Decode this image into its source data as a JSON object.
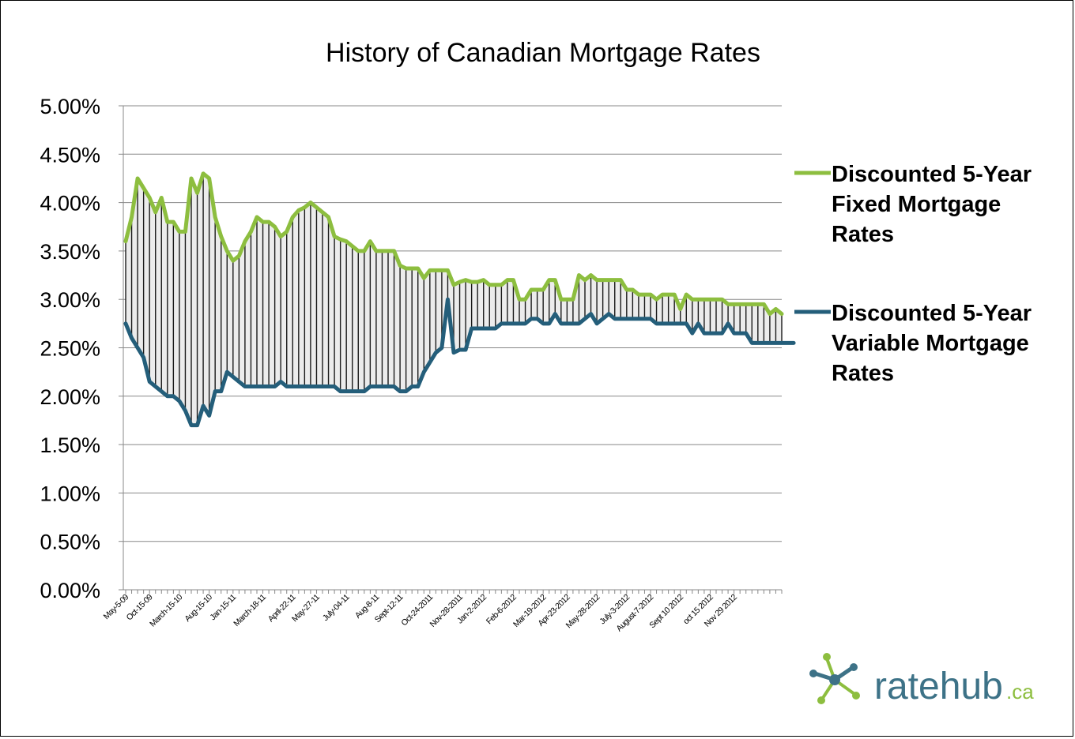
{
  "chart_data": {
    "type": "area",
    "title": "History of Canadian Mortgage Rates",
    "ylim": [
      0,
      5
    ],
    "yticks": [
      "0.00%",
      "0.50%",
      "1.00%",
      "1.50%",
      "2.00%",
      "2.50%",
      "3.00%",
      "3.50%",
      "4.00%",
      "4.50%",
      "5.00%"
    ],
    "ytick_values": [
      0,
      0.5,
      1,
      1.5,
      2,
      2.5,
      3,
      3.5,
      4,
      4.5,
      5
    ],
    "grid": true,
    "legend_position": "right",
    "fill_between_series": true,
    "x_tick_labels": [
      {
        "label": "May-5-09",
        "index": 0
      },
      {
        "label": "Oct-15-09",
        "index": 4
      },
      {
        "label": "March-15-10",
        "index": 9
      },
      {
        "label": "Aug-15-10",
        "index": 14
      },
      {
        "label": "Jan-15-11",
        "index": 18
      },
      {
        "label": "March-18-11",
        "index": 23
      },
      {
        "label": "April-22-11",
        "index": 28
      },
      {
        "label": "May-27-11",
        "index": 32
      },
      {
        "label": "July-04-11",
        "index": 37
      },
      {
        "label": "Aug-8-11",
        "index": 42
      },
      {
        "label": "Sept-12-11",
        "index": 46
      },
      {
        "label": "Oct-24-2011",
        "index": 51
      },
      {
        "label": "Nov-28-2011",
        "index": 56
      },
      {
        "label": "Jan-2-2012",
        "index": 60
      },
      {
        "label": "Feb-6-2012",
        "index": 65
      },
      {
        "label": "Mar-19-2012",
        "index": 70
      },
      {
        "label": "Apr-23-2012",
        "index": 74
      },
      {
        "label": "May-28-2012",
        "index": 79
      },
      {
        "label": "July-3-2012",
        "index": 84
      },
      {
        "label": "August-7-2012",
        "index": 88
      },
      {
        "label": "Sept 10 2012",
        "index": 93
      },
      {
        "label": "oct 15 2012",
        "index": 98
      },
      {
        "label": "Nov 29 2012",
        "index": 102
      }
    ],
    "series": [
      {
        "name": "Discounted 5-Year Fixed Mortgage Rates",
        "color": "#8dbe3f",
        "values": [
          3.6,
          3.85,
          4.25,
          4.15,
          4.05,
          3.9,
          4.05,
          3.8,
          3.8,
          3.7,
          3.7,
          4.25,
          4.1,
          4.3,
          4.25,
          3.85,
          3.65,
          3.5,
          3.4,
          3.45,
          3.6,
          3.7,
          3.85,
          3.8,
          3.8,
          3.75,
          3.65,
          3.7,
          3.85,
          3.92,
          3.95,
          4.0,
          3.95,
          3.9,
          3.85,
          3.65,
          3.62,
          3.6,
          3.55,
          3.5,
          3.5,
          3.6,
          3.5,
          3.5,
          3.5,
          3.5,
          3.35,
          3.32,
          3.32,
          3.32,
          3.22,
          3.3,
          3.3,
          3.3,
          3.3,
          3.15,
          3.18,
          3.2,
          3.18,
          3.18,
          3.2,
          3.15,
          3.15,
          3.15,
          3.2,
          3.2,
          3.0,
          3.0,
          3.1,
          3.1,
          3.1,
          3.2,
          3.2,
          3.0,
          3.0,
          3.0,
          3.25,
          3.2,
          3.25,
          3.2,
          3.2,
          3.2,
          3.2,
          3.2,
          3.1,
          3.1,
          3.05,
          3.05,
          3.05,
          3.0,
          3.05,
          3.05,
          3.05,
          2.9,
          3.05,
          3.0,
          3.0,
          3.0,
          3.0,
          3.0,
          3.0,
          2.95,
          2.95,
          2.95,
          2.95,
          2.95,
          2.95,
          2.95,
          2.85,
          2.9,
          2.85
        ]
      },
      {
        "name": "Discounted 5-Year Variable Mortgage Rates",
        "color": "#245e7a",
        "values": [
          2.75,
          2.6,
          2.5,
          2.4,
          2.15,
          2.1,
          2.05,
          2.0,
          2.0,
          1.95,
          1.85,
          1.7,
          1.7,
          1.9,
          1.8,
          2.05,
          2.05,
          2.25,
          2.2,
          2.15,
          2.1,
          2.1,
          2.1,
          2.1,
          2.1,
          2.1,
          2.15,
          2.1,
          2.1,
          2.1,
          2.1,
          2.1,
          2.1,
          2.1,
          2.1,
          2.1,
          2.05,
          2.05,
          2.05,
          2.05,
          2.05,
          2.1,
          2.1,
          2.1,
          2.1,
          2.1,
          2.05,
          2.05,
          2.1,
          2.1,
          2.25,
          2.35,
          2.45,
          2.5,
          3.0,
          2.45,
          2.48,
          2.48,
          2.7,
          2.7,
          2.7,
          2.7,
          2.7,
          2.75,
          2.75,
          2.75,
          2.75,
          2.75,
          2.8,
          2.8,
          2.75,
          2.75,
          2.85,
          2.75,
          2.75,
          2.75,
          2.75,
          2.8,
          2.85,
          2.75,
          2.8,
          2.85,
          2.8,
          2.8,
          2.8,
          2.8,
          2.8,
          2.8,
          2.8,
          2.75,
          2.75,
          2.75,
          2.75,
          2.75,
          2.75,
          2.65,
          2.75,
          2.65,
          2.65,
          2.65,
          2.65,
          2.75,
          2.65,
          2.65,
          2.65,
          2.55,
          2.55,
          2.55,
          2.55,
          2.55,
          2.55,
          2.55,
          2.55
        ]
      }
    ]
  },
  "legend": {
    "fixed_lines": [
      "Discounted 5-Year",
      "Fixed Mortgage",
      "Rates"
    ],
    "variable_lines": [
      "Discounted 5-Year",
      "Variable Mortgage",
      "Rates"
    ]
  },
  "logo": {
    "text": "ratehub",
    "suffix": ".ca",
    "colors": {
      "primary": "#3d7287",
      "accent": "#8dbe3f"
    }
  }
}
